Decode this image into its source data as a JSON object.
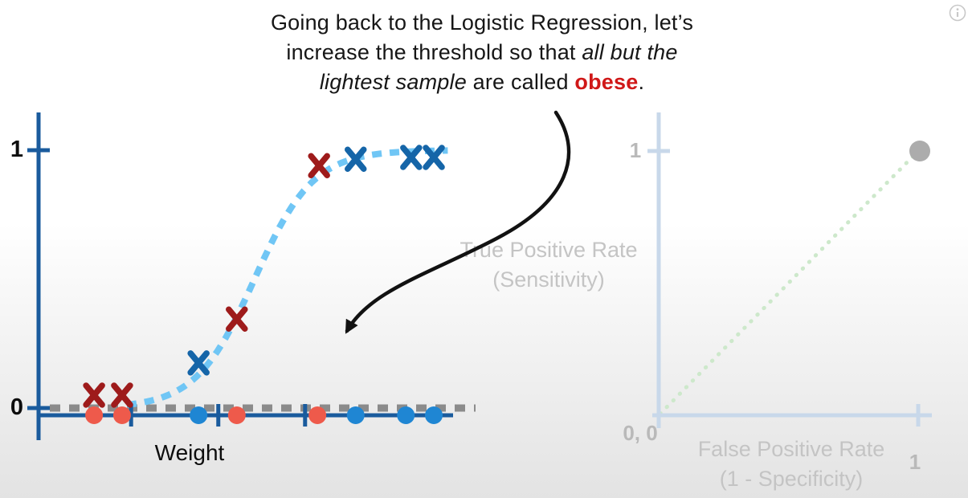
{
  "caption": {
    "lines": [
      [
        {
          "t": "Going back to the Logistic Regression, let’s"
        }
      ],
      [
        {
          "t": "increase the threshold so that "
        },
        {
          "t": "all but the",
          "style": "italic"
        }
      ],
      [
        {
          "t": "lightest sample",
          "style": "italic"
        },
        {
          "t": " are called "
        },
        {
          "t": "obese",
          "style": "bold-red"
        },
        {
          "t": "."
        }
      ]
    ],
    "accent_color": "#d01818"
  },
  "annotation_arrow": {
    "shape": "curved-arrow",
    "color": "#121212",
    "description": "curved arrow from caption down to the threshold line on the logistic regression plot"
  },
  "icons": {
    "info": "circled-i"
  },
  "chart_data": [
    {
      "type": "scatter",
      "title": "Logistic regression of obesity vs weight with raised classification threshold",
      "xlabel": "Weight",
      "ylabel": "",
      "ylim": [
        0,
        1
      ],
      "y_tick_labels": {
        "top": "1",
        "bottom": "0"
      },
      "axis_color": "#1a5b9d",
      "grid": false,
      "sigmoid": {
        "style": "dashed",
        "color": "#70c6f5",
        "k": 14,
        "x0": 0.525,
        "x_start": 0.215,
        "x_end": 1.0
      },
      "threshold_line": {
        "y": 0,
        "style": "dashed",
        "color": "#8b8b8b"
      },
      "x_axis_ticks": [
        0.225,
        0.437,
        0.648
      ],
      "predictions_x_markers": [
        {
          "x": 0.135,
          "y": 0.05,
          "color": "#9e1b1b"
        },
        {
          "x": 0.203,
          "y": 0.05,
          "color": "#9e1b1b"
        },
        {
          "x": 0.389,
          "y": 0.175,
          "color": "#1565a8"
        },
        {
          "x": 0.482,
          "y": 0.345,
          "color": "#9e1b1b"
        },
        {
          "x": 0.682,
          "y": 0.94,
          "color": "#9e1b1b"
        },
        {
          "x": 0.771,
          "y": 0.965,
          "color": "#1565a8"
        },
        {
          "x": 0.906,
          "y": 0.972,
          "color": "#1565a8"
        },
        {
          "x": 0.961,
          "y": 0.972,
          "color": "#1565a8"
        }
      ],
      "samples_dots": [
        {
          "x": 0.135,
          "color": "#ee5a4b"
        },
        {
          "x": 0.203,
          "color": "#ee5a4b"
        },
        {
          "x": 0.389,
          "color": "#1f86d3"
        },
        {
          "x": 0.482,
          "color": "#ee5a4b"
        },
        {
          "x": 0.678,
          "color": "#ee5a4b"
        },
        {
          "x": 0.771,
          "color": "#1f86d3"
        },
        {
          "x": 0.893,
          "color": "#1f86d3"
        },
        {
          "x": 0.961,
          "color": "#1f86d3"
        }
      ]
    },
    {
      "type": "scatter",
      "title": "ROC plot (faded)",
      "faded": true,
      "xlabel": "False Positive Rate",
      "xlabel2": "(1 - Specificity)",
      "ylabel": "True Positive Rate",
      "ylabel2": "(Sensitivity)",
      "origin_label": "0, 0",
      "x_tick_label": "1",
      "y_tick_label": "1",
      "xlim": [
        0,
        1
      ],
      "ylim": [
        0,
        1
      ],
      "axis_color": "#c8d8ea",
      "diagonal": {
        "from": [
          0,
          0
        ],
        "to": [
          1,
          1
        ],
        "style": "dotted",
        "color": "#cde8cb"
      },
      "points": [
        {
          "x": 1,
          "y": 1,
          "color": "#acacac"
        }
      ]
    }
  ]
}
